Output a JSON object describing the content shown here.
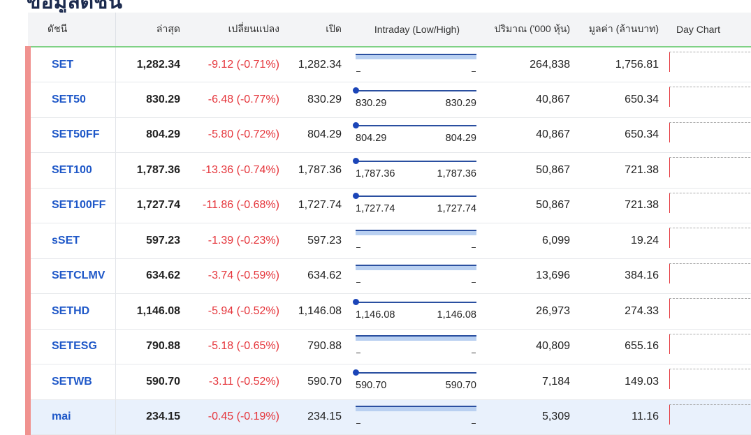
{
  "page": {
    "title": "ข้อมูลดัชนี"
  },
  "columns": {
    "index": "ดัชนี",
    "last": "ล่าสุด",
    "change": "เปลี่ยนแปลง",
    "open": "เปิด",
    "intraday": "Intraday (Low/High)",
    "volume": "ปริมาณ ('000 หุ้น)",
    "value": "มูลค่า (ล้านบาท)",
    "day_chart": "Day Chart"
  },
  "colors": {
    "index_link": "#1f58c8",
    "negative": "#e5353b",
    "accent_stripe": "#f0928f",
    "bar": "#2a4fa0",
    "bar_band": "#b9d0f1",
    "header_rule": "#7fd185"
  },
  "rows": [
    {
      "name": "SET",
      "last": "1,282.34",
      "change": "-9.12 (-0.71%)",
      "open": "1,282.34",
      "low": "",
      "high": "",
      "volume": "264,838",
      "value": "1,756.81"
    },
    {
      "name": "SET50",
      "last": "830.29",
      "change": "-6.48 (-0.77%)",
      "open": "830.29",
      "low": "830.29",
      "high": "830.29",
      "volume": "40,867",
      "value": "650.34"
    },
    {
      "name": "SET50FF",
      "last": "804.29",
      "change": "-5.80 (-0.72%)",
      "open": "804.29",
      "low": "804.29",
      "high": "804.29",
      "volume": "40,867",
      "value": "650.34"
    },
    {
      "name": "SET100",
      "last": "1,787.36",
      "change": "-13.36 (-0.74%)",
      "open": "1,787.36",
      "low": "1,787.36",
      "high": "1,787.36",
      "volume": "50,867",
      "value": "721.38"
    },
    {
      "name": "SET100FF",
      "last": "1,727.74",
      "change": "-11.86 (-0.68%)",
      "open": "1,727.74",
      "low": "1,727.74",
      "high": "1,727.74",
      "volume": "50,867",
      "value": "721.38"
    },
    {
      "name": "sSET",
      "last": "597.23",
      "change": "-1.39 (-0.23%)",
      "open": "597.23",
      "low": "",
      "high": "",
      "volume": "6,099",
      "value": "19.24"
    },
    {
      "name": "SETCLMV",
      "last": "634.62",
      "change": "-3.74 (-0.59%)",
      "open": "634.62",
      "low": "",
      "high": "",
      "volume": "13,696",
      "value": "384.16"
    },
    {
      "name": "SETHD",
      "last": "1,146.08",
      "change": "-5.94 (-0.52%)",
      "open": "1,146.08",
      "low": "1,146.08",
      "high": "1,146.08",
      "volume": "26,973",
      "value": "274.33"
    },
    {
      "name": "SETESG",
      "last": "790.88",
      "change": "-5.18 (-0.65%)",
      "open": "790.88",
      "low": "",
      "high": "",
      "volume": "40,809",
      "value": "655.16"
    },
    {
      "name": "SETWB",
      "last": "590.70",
      "change": "-3.11 (-0.52%)",
      "open": "590.70",
      "low": "590.70",
      "high": "590.70",
      "volume": "7,184",
      "value": "149.03"
    },
    {
      "name": "mai",
      "last": "234.15",
      "change": "-0.45 (-0.19%)",
      "open": "234.15",
      "low": "",
      "high": "",
      "volume": "5,309",
      "value": "11.16",
      "highlighted": true
    }
  ]
}
